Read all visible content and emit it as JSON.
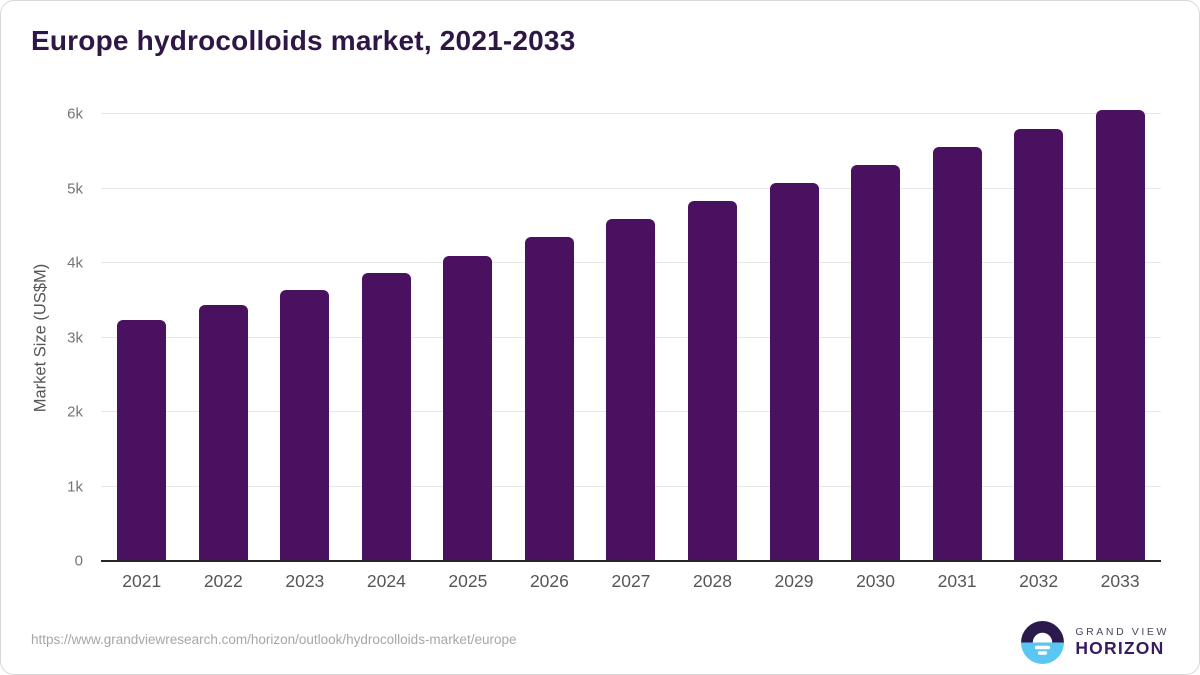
{
  "title": "Europe hydrocolloids market, 2021-2033",
  "chart_data": {
    "type": "bar",
    "title": "Europe hydrocolloids market, 2021-2033",
    "categories": [
      "2021",
      "2022",
      "2023",
      "2024",
      "2025",
      "2026",
      "2027",
      "2028",
      "2029",
      "2030",
      "2031",
      "2032",
      "2033"
    ],
    "values": [
      3240,
      3430,
      3640,
      3860,
      4100,
      4350,
      4590,
      4830,
      5070,
      5320,
      5560,
      5800,
      6050
    ],
    "xlabel": "",
    "ylabel": "Market Size (US$M)",
    "ylim": [
      0,
      6000
    ],
    "ytick_values": [
      0,
      1000,
      2000,
      3000,
      4000,
      5000,
      6000
    ],
    "ytick_labels": [
      "0",
      "1k",
      "2k",
      "3k",
      "4k",
      "5k",
      "6k"
    ],
    "grid": true,
    "legend": false,
    "bar_color": "#4a1161",
    "gridline_color": "#e8e8e8",
    "axis_line_color": "#262626"
  },
  "colors": {
    "title": "#2e1745",
    "y_tick": "#757575",
    "x_tick": "#565656",
    "url_text": "#a6a6a6",
    "logo_dark": "#2c1a4d",
    "logo_blue": "#5ac6f2",
    "card_border": "#d8d8d8"
  },
  "footer": {
    "source_url": "https://www.grandviewresearch.com/horizon/outlook/hydrocolloids-market/europe",
    "logo": {
      "line1": "GRAND VIEW",
      "line2": "HORIZON"
    }
  }
}
